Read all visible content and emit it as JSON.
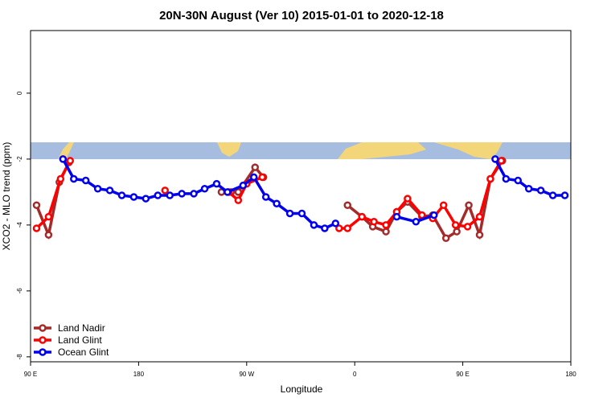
{
  "chart_data": {
    "type": "line",
    "title": "20N-30N August (Ver 10)   2015-01-01 to 2020-12-18",
    "x_label": "Longitude",
    "y_label": "XCO2 - MLO trend (ppm)",
    "xlim": [
      90,
      540
    ],
    "ylim": [
      -8.15,
      1.9
    ],
    "xticks": [
      {
        "value": 90,
        "label": "90 E"
      },
      180,
      {
        "value": 270,
        "label": "90 W"
      },
      {
        "value": 360,
        "label": "0"
      },
      {
        "value": 450,
        "label": "90 E"
      },
      {
        "value": 540,
        "label": "180"
      }
    ],
    "yticks": [
      0,
      -2,
      -4,
      -6,
      -8
    ],
    "legend": "bottom-left",
    "series": [
      {
        "name": "Land Nadir",
        "color": "#a52a2a",
        "x": [
          95,
          105,
          114,
          122,
          200,
          249,
          257,
          263,
          277,
          284,
          320,
          354,
          366,
          375,
          386,
          395,
          404,
          416,
          425,
          436,
          445,
          455,
          464,
          473,
          483
        ],
        "values": [
          -3.4,
          -4.3,
          -2.7,
          -2.1,
          null,
          -3.0,
          -3.0,
          -3.0,
          -2.25,
          -2.55,
          null,
          -3.4,
          -3.75,
          -4.05,
          -4.2,
          -3.6,
          -3.3,
          -3.75,
          -3.7,
          -4.4,
          -4.2,
          -3.4,
          -4.3,
          -2.6,
          -2.05
        ]
      },
      {
        "name": "Land Glint",
        "color": "#ff0000",
        "x": [
          95,
          105,
          115,
          123,
          160,
          202,
          230,
          255,
          263,
          270,
          283,
          320,
          347,
          354,
          366,
          376,
          386,
          395,
          404,
          416,
          425,
          434,
          444,
          454,
          464,
          473,
          482
        ],
        "values": [
          -4.1,
          -3.75,
          -2.6,
          -2.05,
          null,
          -2.95,
          null,
          -3.0,
          -3.25,
          -2.75,
          -2.55,
          null,
          -4.1,
          -4.1,
          -3.75,
          -3.9,
          -4.0,
          -3.6,
          -3.2,
          -3.7,
          -3.8,
          -3.4,
          -4.0,
          -4.05,
          -3.75,
          -2.6,
          -2.05
        ]
      },
      {
        "name": "Ocean Glint",
        "color": "#0000ee",
        "x": [
          117,
          126,
          136,
          146,
          156,
          166,
          176,
          186,
          196,
          206,
          216,
          226,
          235,
          245,
          254,
          267,
          276,
          286,
          295,
          306,
          316,
          326,
          335,
          344,
          370,
          395,
          411,
          426,
          450,
          477,
          486,
          496,
          505,
          515,
          525,
          535
        ],
        "values": [
          -2.0,
          -2.6,
          -2.65,
          -2.9,
          -2.95,
          -3.1,
          -3.15,
          -3.2,
          -3.1,
          -3.1,
          -3.05,
          -3.05,
          -2.9,
          -2.75,
          -3.0,
          -2.8,
          -2.55,
          -3.15,
          -3.35,
          -3.65,
          -3.65,
          -4.0,
          -4.1,
          -3.95,
          null,
          -3.75,
          -3.9,
          -3.7,
          null,
          -2.0,
          -2.6,
          -2.65,
          -2.9,
          -2.95,
          -3.1,
          -3.1
        ]
      }
    ]
  }
}
